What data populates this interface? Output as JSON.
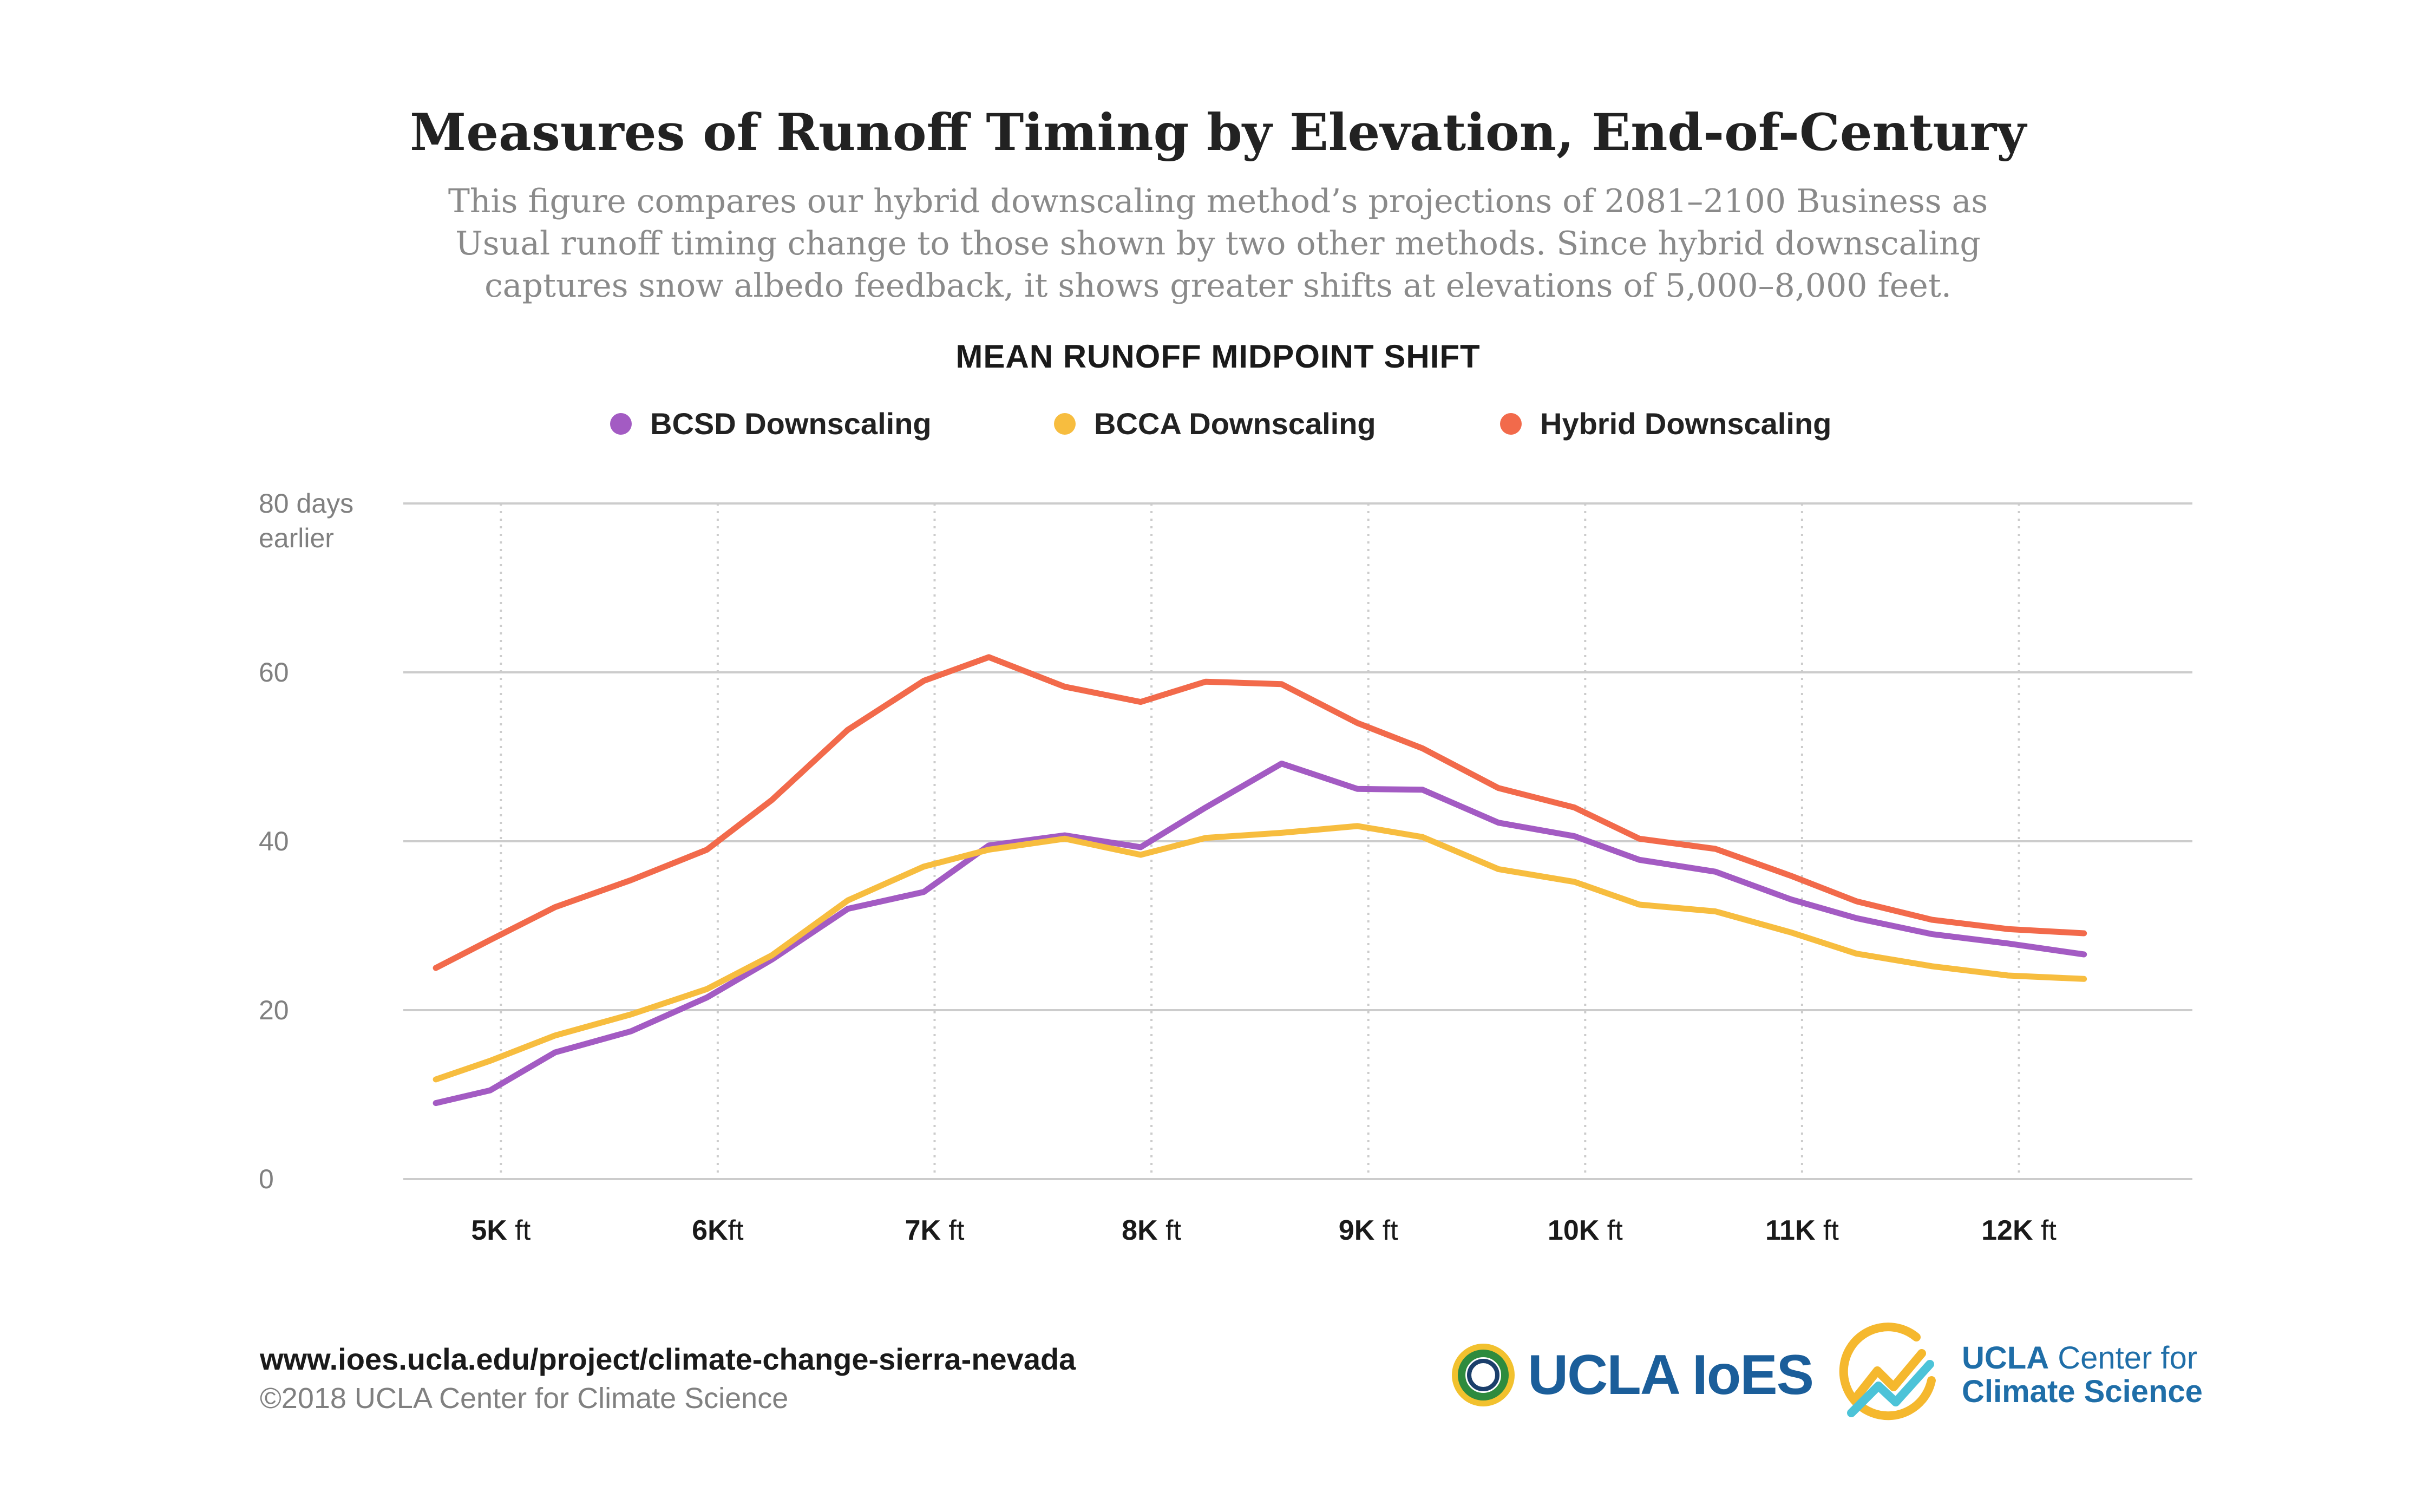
{
  "header": {
    "title": "Measures of Runoff Timing by Elevation, End-of-Century",
    "subtitle_lines": [
      "This figure compares our hybrid downscaling method’s projections of 2081–2100 Business as",
      "Usual runoff timing change to those shown by two other methods. Since hybrid downscaling",
      "captures snow albedo feedback, it shows greater shifts at elevations of 5,000–8,000 feet."
    ]
  },
  "colors": {
    "bcsd": "#a35bc3",
    "bcca": "#f7bd3f",
    "hybrid": "#f26a4b",
    "grid": "#cccccc",
    "axis_text": "#808080"
  },
  "chart_data": {
    "type": "line",
    "title": "MEAN RUNOFF MIDPOINT SHIFT",
    "ylabel_top": [
      "80 days",
      "earlier"
    ],
    "yticks": [
      0,
      20,
      40,
      60,
      80
    ],
    "ylim": [
      0,
      80
    ],
    "xlim": [
      4550,
      12800
    ],
    "xticks": [
      {
        "value": 5000,
        "bold": "5K",
        "rest": " ft"
      },
      {
        "value": 6000,
        "bold": "6K",
        "rest": "ft"
      },
      {
        "value": 7000,
        "bold": "7K",
        "rest": " ft"
      },
      {
        "value": 8000,
        "bold": "8K",
        "rest": " ft"
      },
      {
        "value": 9000,
        "bold": "9K",
        "rest": " ft"
      },
      {
        "value": 10000,
        "bold": "10K",
        "rest": " ft"
      },
      {
        "value": 11000,
        "bold": "11K",
        "rest": " ft"
      },
      {
        "value": 12000,
        "bold": "12K",
        "rest": " ft"
      }
    ],
    "x": [
      4700,
      4950,
      5250,
      5600,
      5950,
      6250,
      6600,
      6950,
      7250,
      7600,
      7950,
      8250,
      8600,
      8950,
      9250,
      9600,
      9950,
      10250,
      10600,
      10950,
      11250,
      11600,
      11950,
      12300
    ],
    "series": [
      {
        "name": "BCSD Downscaling",
        "color_key": "bcsd",
        "values": [
          9,
          10.5,
          15,
          17.5,
          21.5,
          26,
          32,
          34,
          39.5,
          40.7,
          39.3,
          44,
          49.2,
          46.2,
          46.1,
          42.2,
          40.6,
          37.8,
          36.4,
          33.1,
          30.9,
          29,
          27.9,
          26.6
        ]
      },
      {
        "name": "BCCA Downscaling",
        "color_key": "bcca",
        "values": [
          11.8,
          14,
          17,
          19.5,
          22.5,
          26.5,
          33,
          37,
          39,
          40.3,
          38.4,
          40.4,
          41,
          41.8,
          40.5,
          36.7,
          35.2,
          32.5,
          31.7,
          29.2,
          26.7,
          25.2,
          24.1,
          23.7
        ]
      },
      {
        "name": "Hybrid Downscaling",
        "color_key": "hybrid",
        "values": [
          25,
          28.3,
          32.2,
          35.4,
          39,
          44.9,
          53.2,
          59,
          61.8,
          58.3,
          56.5,
          58.9,
          58.6,
          54,
          51,
          46.3,
          44,
          40.3,
          39.1,
          35.9,
          32.9,
          30.7,
          29.6,
          29.1
        ]
      }
    ]
  },
  "footer": {
    "url": "www.ioes.ucla.edu/project/climate-change-sierra-nevada",
    "copyright": "©2018 UCLA Center for Climate Science"
  },
  "logos": {
    "ioes": "UCLA IoES",
    "ccs_line1_bold": "UCLA",
    "ccs_line1_rest": " Center for",
    "ccs_line2": "Climate Science"
  }
}
